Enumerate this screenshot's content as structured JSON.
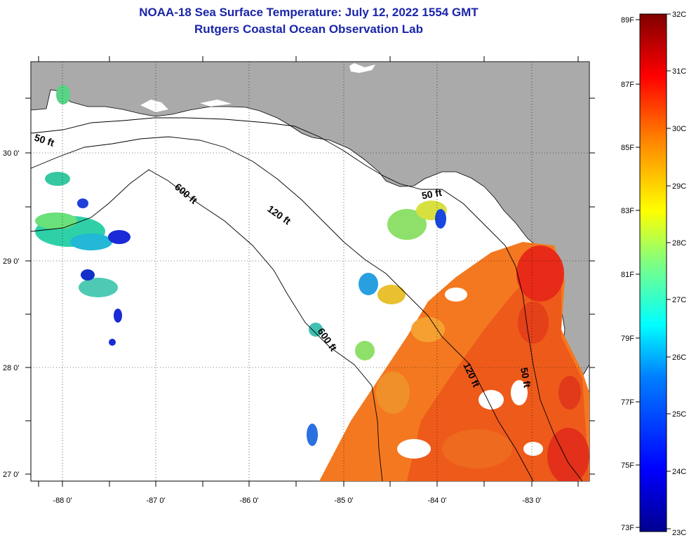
{
  "header": {
    "title": "NOAA-18 Sea Surface Temperature:  July 12, 2022 1554 GMT",
    "subtitle": "Rutgers Coastal Ocean Observation Lab"
  },
  "axes": {
    "lat_labels": [
      "30 0'",
      "29 0'",
      "28 0'",
      "27 0'"
    ],
    "lon_labels": [
      "-88 0'",
      "-87 0'",
      "-86 0'",
      "-85 0'",
      "-84 0'",
      "-83 0'"
    ]
  },
  "contours": {
    "c50_west": "50 ft",
    "c600": "600 ft",
    "c120": "120 ft",
    "c50_bigbend": "50 ft",
    "c600_south": "600 ft",
    "c120_south": "120 ft",
    "c50_south": "50 ft"
  },
  "colorbar": {
    "f_labels": [
      "89F",
      "87F",
      "85F",
      "83F",
      "81F",
      "79F",
      "77F",
      "75F",
      "73F"
    ],
    "c_labels": [
      "32C",
      "31C",
      "30C",
      "29C",
      "28C",
      "27C",
      "26C",
      "25C",
      "24C",
      "23C"
    ]
  },
  "colors": {
    "land": "#aaaaaa",
    "title": "#1a25a8",
    "cold": "#00008f",
    "warm": "#800000"
  }
}
